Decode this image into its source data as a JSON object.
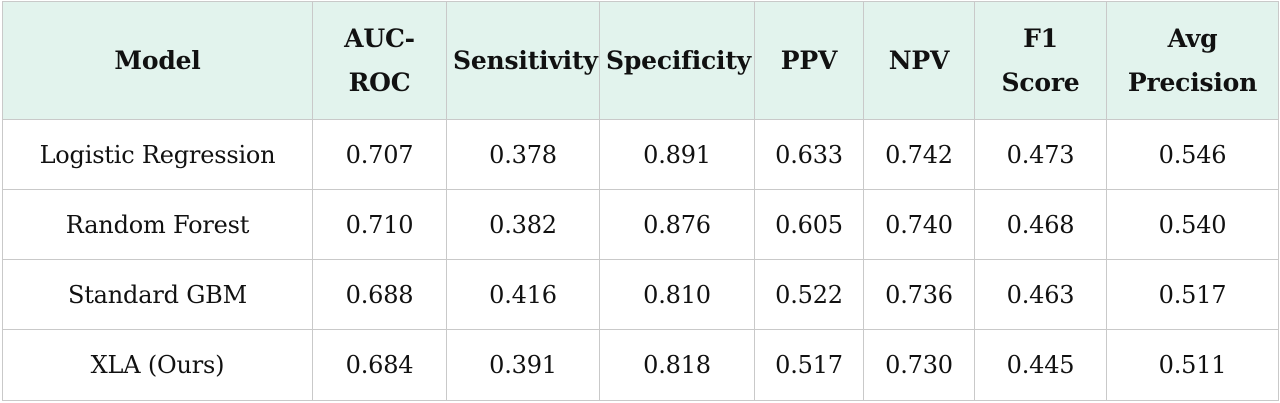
{
  "table": {
    "headers": [
      "Model",
      "AUC-\nROC",
      "Sensitivity",
      "Specificity",
      "PPV",
      "NPV",
      "F1\nScore",
      "Avg\nPrecision"
    ],
    "rows": [
      [
        "Logistic Regression",
        "0.707",
        "0.378",
        "0.891",
        "0.633",
        "0.742",
        "0.473",
        "0.546"
      ],
      [
        "Random Forest",
        "0.710",
        "0.382",
        "0.876",
        "0.605",
        "0.740",
        "0.468",
        "0.540"
      ],
      [
        "Standard GBM",
        "0.688",
        "0.416",
        "0.810",
        "0.522",
        "0.736",
        "0.463",
        "0.517"
      ],
      [
        "XLA (Ours)",
        "0.684",
        "0.391",
        "0.818",
        "0.517",
        "0.730",
        "0.445",
        "0.511"
      ]
    ],
    "colors": {
      "header_background": "#e2f3ed",
      "border": "#c9c9c9",
      "text": "#111111"
    }
  }
}
